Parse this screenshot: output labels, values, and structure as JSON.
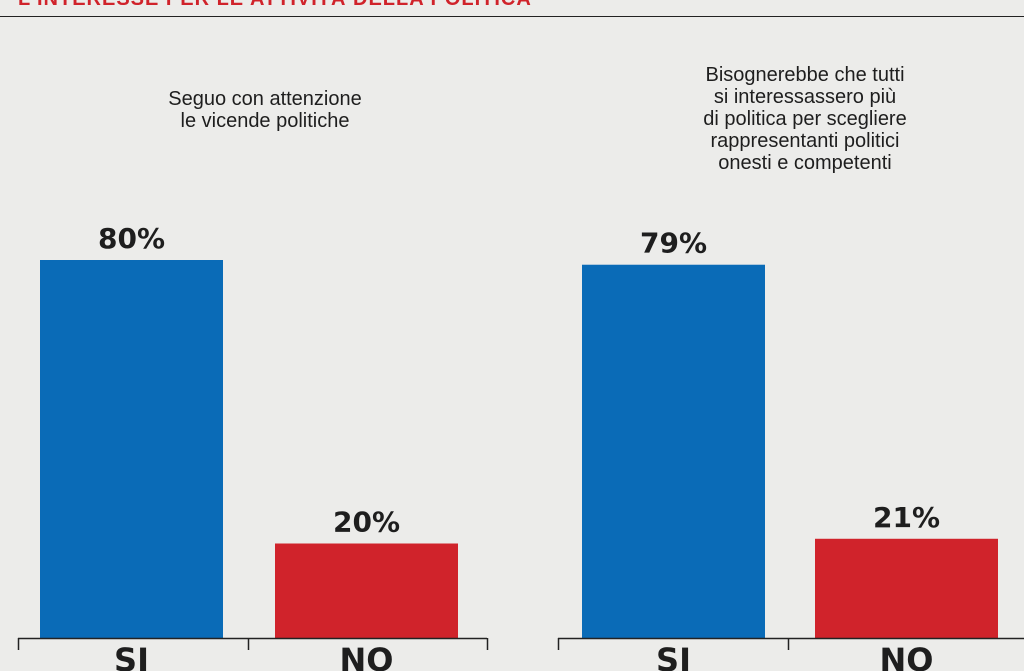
{
  "header": {
    "title": "L'INTERESSE PER LE ATTIVITÀ DELLA POLITICA"
  },
  "colors": {
    "si": "#0a6bb7",
    "no": "#d0232b",
    "header": "#d0232b",
    "text": "#1e1e1e",
    "background": "#ececea"
  },
  "chart_data": [
    {
      "type": "bar",
      "title": "Seguo con attenzione\nle vicende politiche",
      "categories": [
        "SI",
        "NO"
      ],
      "values": [
        80,
        20
      ],
      "value_labels": [
        "80%",
        "20%"
      ],
      "ylim": [
        0,
        100
      ],
      "grid": false,
      "legend": "none"
    },
    {
      "type": "bar",
      "title": "Bisognerebbe che tutti\nsi interessassero più\ndi politica per scegliere\nrappresentanti politici\nonesti e competenti",
      "categories": [
        "SI",
        "NO"
      ],
      "values": [
        79,
        21
      ],
      "value_labels": [
        "79%",
        "21%"
      ],
      "ylim": [
        0,
        100
      ],
      "grid": false,
      "legend": "none"
    }
  ]
}
